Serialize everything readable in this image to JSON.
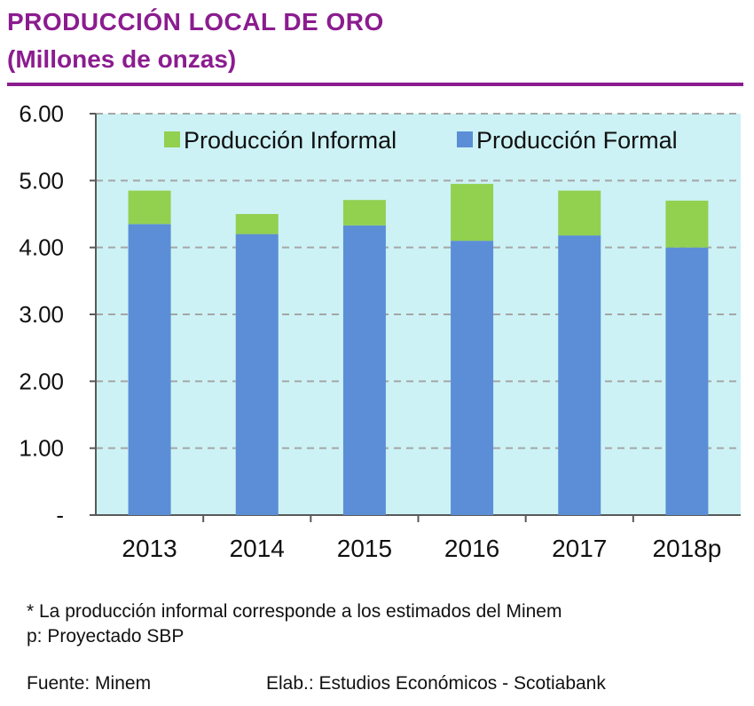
{
  "title": "PRODUCCIÓN LOCAL DE ORO",
  "subtitle": "(Millones de onzas)",
  "chart_data": {
    "type": "bar",
    "stacked": true,
    "categories": [
      "2013",
      "2014",
      "2015",
      "2016",
      "2017",
      "2018p"
    ],
    "series": [
      {
        "name": "Producción Formal",
        "values": [
          4.35,
          4.2,
          4.33,
          4.1,
          4.18,
          4.0
        ],
        "color": "#5B8ED6"
      },
      {
        "name": "Producción Informal",
        "values": [
          0.5,
          0.3,
          0.38,
          0.85,
          0.67,
          0.7
        ],
        "color": "#92D050"
      }
    ],
    "legend_order": [
      "Producción Informal",
      "Producción Formal"
    ],
    "legend_position": "top",
    "ylim": [
      0,
      6
    ],
    "yticks": [
      "-",
      "1.00",
      "2.00",
      "3.00",
      "4.00",
      "5.00",
      "6.00"
    ],
    "grid": true,
    "plot_background": "#CCF2F5"
  },
  "footnote1": "* La producción informal corresponde a los estimados del Minem",
  "footnote2": "p: Proyectado SBP",
  "source": "Fuente: Minem",
  "credit": "Elab.: Estudios Económicos - Scotiabank"
}
